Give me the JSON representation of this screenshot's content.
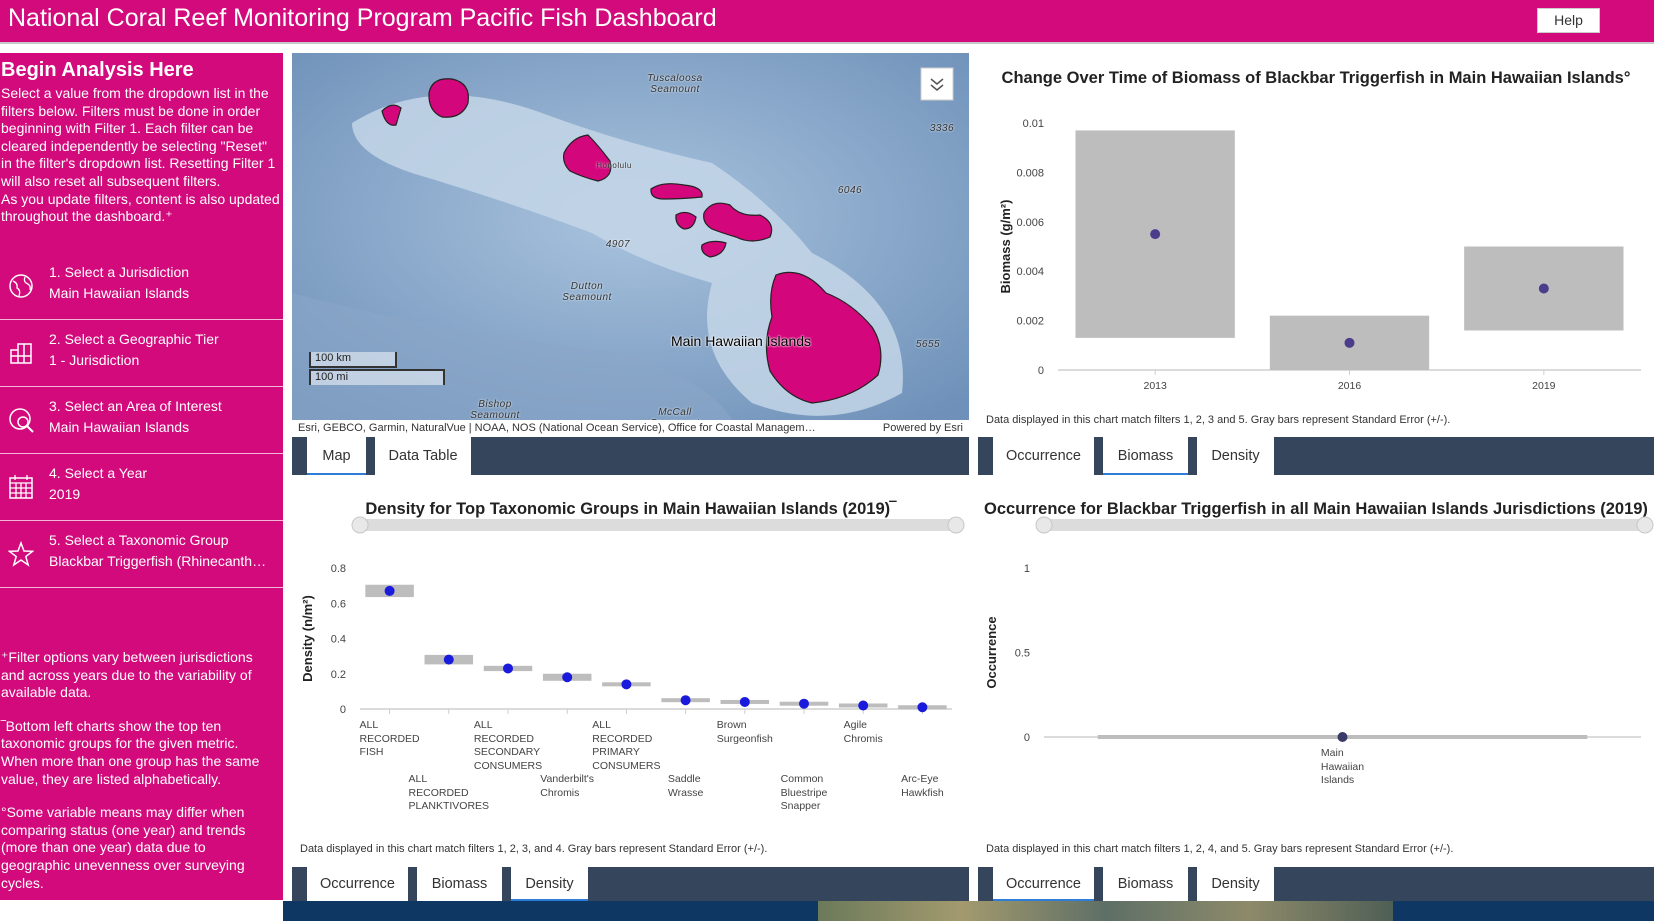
{
  "header": {
    "title": "National Coral Reef Monitoring Program Pacific Fish Dashboard",
    "help": "Help"
  },
  "sidebar": {
    "heading": "Begin Analysis Here",
    "intro": [
      "Select a value from the dropdown list in the filters below. Filters must be done in order beginning with Filter 1. Each filter can be cleared independently be selecting \"Reset\" in the filter's dropdown list. Resetting Filter 1 will also reset all subsequent filters.",
      "As you update filters, content is also updated throughout the dashboard.⁺"
    ],
    "filters": [
      {
        "label": "1. Select a Jurisdiction",
        "value": "Main Hawaiian Islands"
      },
      {
        "label": "2. Select a Geographic Tier",
        "value": "1 - Jurisdiction"
      },
      {
        "label": "3. Select an Area of Interest",
        "value": "Main Hawaiian Islands"
      },
      {
        "label": "4. Select a Year",
        "value": "2019"
      },
      {
        "label": "5. Select a Taxonomic Group",
        "value": "Blackbar Triggerfish (Rhinecanth…"
      }
    ],
    "notes": [
      "⁺Filter options vary between jurisdictions and across years due to the variability of available data.",
      "‾Bottom left charts show the top ten taxonomic groups for the given metric. When more than one group has the same value, they are listed alphabetically.",
      "°Some variable means may differ when comparing status (one year) and trends (more than one year) data due to geographic unevenness over surveying cycles."
    ]
  },
  "map": {
    "places": [
      "Tuscaloosa Seamount",
      "3336",
      "6046",
      "4907",
      "Dutton Seamount",
      "Main Hawaiian Islands",
      "5655",
      "Bishop Seamount",
      "McCall Seamount",
      "Honolulu"
    ],
    "scale": [
      "100 km",
      "100 mi"
    ],
    "attribution": "Esri, GEBCO, Garmin, NaturalVue | NOAA, NOS (National Ocean Service), Office for Coastal Managem…",
    "powered_by": "Powered by Esri",
    "tabs": [
      "Map",
      "Data Table"
    ],
    "active_tab": "Map"
  },
  "chart_data": [
    {
      "type": "errorbar",
      "title": "Change Over Time of Biomass of Blackbar Triggerfish in Main Hawaiian Islands°",
      "ylabel": "Biomass (g/m²)",
      "categories": [
        "2013",
        "2016",
        "2019"
      ],
      "values": [
        0.0055,
        0.0011,
        0.0033
      ],
      "errors": [
        0.0042,
        0.0011,
        0.0017
      ],
      "color": "#4b3d8c",
      "error_color": "#bdbdbd",
      "ylim": [
        0,
        0.01
      ],
      "yticks": [
        0,
        0.002,
        0.004,
        0.006,
        0.008,
        0.01
      ],
      "range_slider": false,
      "note": "Data displayed in this chart match filters 1, 2, 3 and 5. Gray bars represent Standard Error (+/-).",
      "tabs": [
        "Occurrence",
        "Biomass",
        "Density"
      ],
      "active_tab": "Biomass"
    },
    {
      "type": "errorbar",
      "title": "Density for Top Taxonomic Groups in Main Hawaiian Islands (2019)‾",
      "ylabel": "Density (n/m²)",
      "categories": [
        "ALL RECORDED FISH",
        "ALL RECORDED PLANKTIVORES",
        "ALL RECORDED SECONDARY CONSUMERS",
        "Vanderbilt's Chromis",
        "ALL RECORDED PRIMARY CONSUMERS",
        "Saddle Wrasse",
        "Brown Surgeonfish",
        "Common Bluestripe Snapper",
        "Agile Chromis",
        "Arc-Eye Hawkfish"
      ],
      "values": [
        0.67,
        0.28,
        0.23,
        0.18,
        0.14,
        0.05,
        0.04,
        0.03,
        0.02,
        0.01
      ],
      "errors": [
        0.035,
        0.027,
        0.015,
        0.02,
        0.01,
        0.006,
        0.006,
        0.005,
        0.005,
        0.004
      ],
      "color": "#1a1adc",
      "error_color": "#bdbdbd",
      "ylim": [
        0,
        0.8
      ],
      "yticks": [
        0,
        0.2,
        0.4,
        0.6,
        0.8
      ],
      "range_slider": true,
      "note": "Data displayed in this chart match filters 1, 2, 3, and 4. Gray bars represent Standard Error (+/-).",
      "tabs": [
        "Occurrence",
        "Biomass",
        "Density"
      ],
      "active_tab": "Density"
    },
    {
      "type": "errorbar",
      "title": "Occurrence for Blackbar Triggerfish in all Main Hawaiian Islands Jurisdictions (2019)",
      "ylabel": "Occurrence",
      "categories": [
        "Main Hawaiian Islands"
      ],
      "values": [
        0
      ],
      "errors": [
        0
      ],
      "color": "#3a3a66",
      "error_color": "#bdbdbd",
      "ylim": [
        0,
        1
      ],
      "yticks": [
        0,
        0.5,
        1
      ],
      "range_slider": true,
      "note": "Data displayed in this chart match filters 1, 2, 4, and 5. Gray bars represent Standard Error (+/-).",
      "tabs": [
        "Occurrence",
        "Biomass",
        "Density"
      ],
      "active_tab": "Occurrence"
    }
  ]
}
